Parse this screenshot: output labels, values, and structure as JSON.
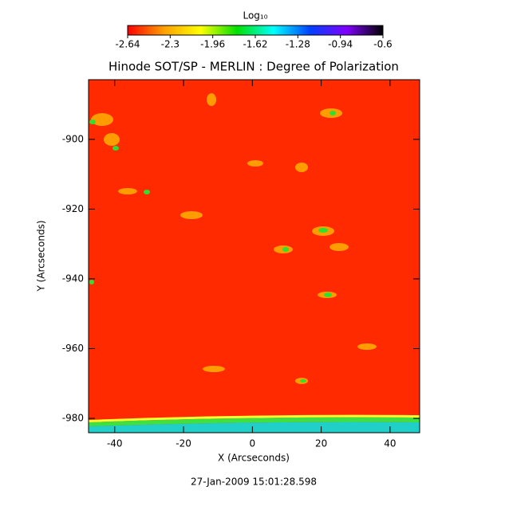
{
  "chart_data": {
    "type": "heatmap",
    "title": "Hinode SOT/SP - MERLIN : Degree of Polarization",
    "xlabel": "X (Arcseconds)",
    "ylabel": "Y (Arcseconds)",
    "footer": "27-Jan-2009 15:01:28.598",
    "xlim": [
      -47.6,
      48.6
    ],
    "ylim": [
      -984.1,
      -882.9
    ],
    "xticks": [
      -40,
      -20,
      0,
      20,
      40
    ],
    "yticks": [
      -980,
      -960,
      -940,
      -920,
      -900
    ],
    "colorbar": {
      "label": "Log₁₀",
      "lim": [
        -2.64,
        -0.6
      ],
      "ticks": [
        -2.64,
        -2.3,
        -1.96,
        -1.62,
        -1.28,
        -0.94,
        -0.6
      ],
      "colormap": [
        "#ff0000",
        "#ffa000",
        "#ffff00",
        "#00e000",
        "#00ffff",
        "#0040ff",
        "#8000ff",
        "#000000"
      ]
    }
  }
}
